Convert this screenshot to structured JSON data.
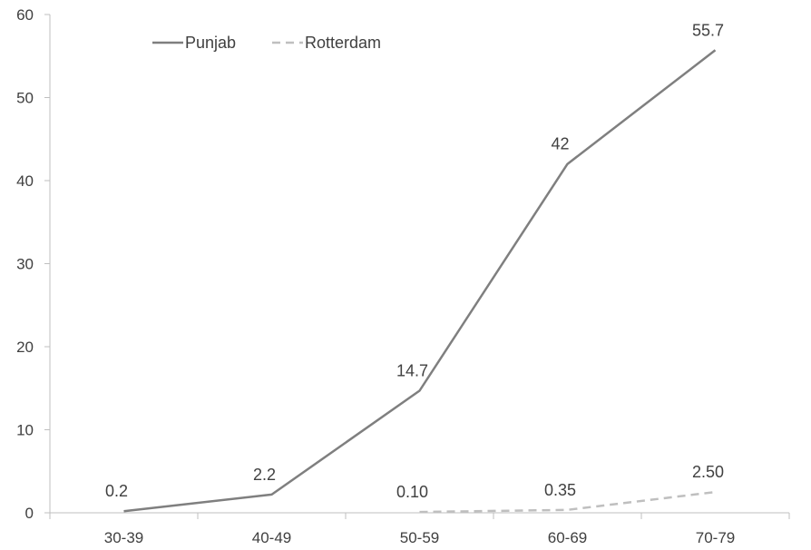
{
  "chart_data": {
    "type": "line",
    "categories": [
      "30-39",
      "40-49",
      "50-59",
      "60-69",
      "70-79"
    ],
    "ylim": [
      0,
      60
    ],
    "yticks": [
      0,
      10,
      20,
      30,
      40,
      50,
      60
    ],
    "grid": false,
    "legend_position": "top-left",
    "series": [
      {
        "name": "Punjab",
        "style": "solid",
        "color": "#7f7f7f",
        "values": [
          0.2,
          2.2,
          14.7,
          42,
          55.7
        ],
        "labels": [
          "0.2",
          "2.2",
          "14.7",
          "42",
          "55.7"
        ]
      },
      {
        "name": "Rotterdam",
        "style": "dashed",
        "color": "#bfbfbf",
        "values": [
          null,
          null,
          0.1,
          0.35,
          2.5
        ],
        "labels": [
          null,
          null,
          "0.10",
          "0.35",
          "2.50"
        ]
      }
    ]
  }
}
